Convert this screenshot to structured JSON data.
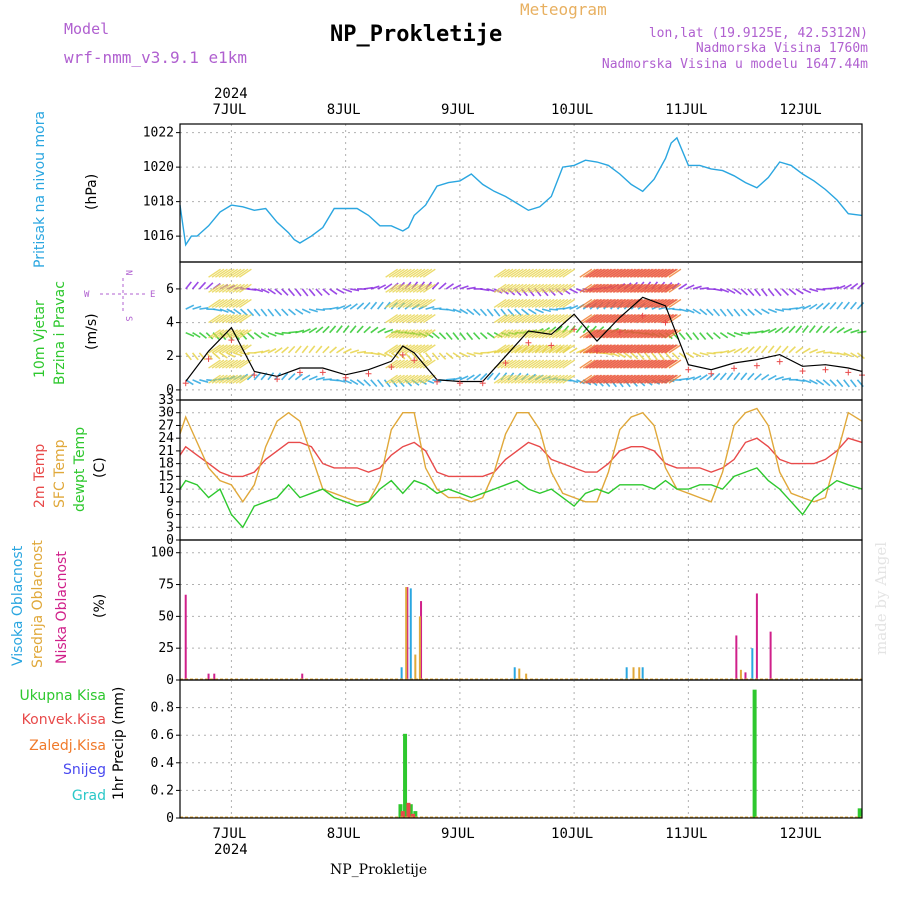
{
  "header": {
    "meteogram": "Meteogram",
    "model_label": "Model",
    "model_name": "wrf-nmm_v3.9.1  e1km",
    "station": "NP_Prokletije",
    "lonlat": "lon,lat (19.9125E, 42.5312N)",
    "elevation": "Nadmorska Visina 1760m",
    "model_elevation": "Nadmorska Visina u modelu 1647.44m",
    "watermark": "made by Angel",
    "footer": "NP_Prokletije"
  },
  "time_axis": {
    "year": "2024",
    "days": [
      "7JUL",
      "8JUL",
      "9JUL",
      "10JUL",
      "11JUL",
      "12JUL"
    ],
    "range_days": [
      6.55,
      12.52
    ]
  },
  "colors": {
    "pressure": "#2aa6e0",
    "wind_label": "#2ec82e",
    "temp2m": "#e84a4a",
    "sfc_temp": "#e0a83a",
    "dewpt": "#2ec82e",
    "high_cloud": "#2aa6e0",
    "mid_cloud": "#e0a83a",
    "low_cloud": "#d0208a",
    "total_precip": "#2ec82e",
    "conv_precip": "#e84a4a",
    "frozen_precip": "#f07a2a",
    "snow": "#4a4af0",
    "hail": "#2ac8c8",
    "compass": "#b060d0"
  },
  "chart_data": [
    {
      "type": "line",
      "ylabel": "Pritisak na nivou mora",
      "unit": "(hPa)",
      "ylim": [
        1014.5,
        1022.5
      ],
      "yticks": [
        1016,
        1018,
        1020,
        1022
      ],
      "grid": true,
      "series": [
        {
          "x": [
            6.55,
            6.6,
            6.65,
            6.7,
            6.8,
            6.9,
            7.0,
            7.1,
            7.2,
            7.3,
            7.4,
            7.5,
            7.55,
            7.6,
            7.7,
            7.8,
            7.9,
            8.0,
            8.1,
            8.2,
            8.3,
            8.4,
            8.5,
            8.55,
            8.6,
            8.7,
            8.8,
            8.9,
            9.0,
            9.1,
            9.2,
            9.3,
            9.4,
            9.5,
            9.6,
            9.7,
            9.8,
            9.9,
            10.0,
            10.1,
            10.2,
            10.3,
            10.4,
            10.5,
            10.6,
            10.7,
            10.8,
            10.85,
            10.9,
            11.0,
            11.1,
            11.2,
            11.3,
            11.4,
            11.5,
            11.6,
            11.7,
            11.8,
            11.9,
            12.0,
            12.1,
            12.2,
            12.3,
            12.4,
            12.52
          ],
          "values": [
            1017.8,
            1015.5,
            1016.0,
            1016.0,
            1016.6,
            1017.4,
            1017.8,
            1017.7,
            1017.5,
            1017.6,
            1016.8,
            1016.2,
            1015.8,
            1015.6,
            1016.0,
            1016.5,
            1017.6,
            1017.6,
            1017.6,
            1017.2,
            1016.6,
            1016.6,
            1016.3,
            1016.5,
            1017.2,
            1017.8,
            1018.9,
            1019.1,
            1019.2,
            1019.6,
            1019.0,
            1018.6,
            1018.3,
            1017.9,
            1017.5,
            1017.7,
            1018.3,
            1020.0,
            1020.1,
            1020.4,
            1020.3,
            1020.1,
            1019.6,
            1019.0,
            1018.6,
            1019.3,
            1020.5,
            1021.4,
            1021.7,
            1020.1,
            1020.1,
            1019.9,
            1019.8,
            1019.5,
            1019.1,
            1018.8,
            1019.4,
            1020.3,
            1020.1,
            1019.6,
            1019.2,
            1018.7,
            1018.1,
            1017.3,
            1017.2
          ]
        }
      ]
    },
    {
      "type": "line",
      "ylabel": "10m Vjetar Brzina i Pravac",
      "unit": "(m/s)",
      "ylim": [
        -0.6,
        7.6
      ],
      "yticks": [
        0,
        2,
        4,
        6
      ],
      "compass": {
        "w": "W",
        "e": "E",
        "n": "N",
        "s": "S"
      },
      "series": [
        {
          "x": [
            6.6,
            6.8,
            7.0,
            7.2,
            7.4,
            7.6,
            7.8,
            8.0,
            8.2,
            8.4,
            8.5,
            8.6,
            8.8,
            9.0,
            9.2,
            9.4,
            9.6,
            9.8,
            10.0,
            10.2,
            10.4,
            10.6,
            10.8,
            11.0,
            11.2,
            11.4,
            11.6,
            11.8,
            12.0,
            12.2,
            12.4,
            12.52
          ],
          "values": [
            0.5,
            2.3,
            3.7,
            1.1,
            0.8,
            1.3,
            1.3,
            0.9,
            1.2,
            1.7,
            2.6,
            2.2,
            0.6,
            0.5,
            0.5,
            2.0,
            3.5,
            3.3,
            4.5,
            2.9,
            4.3,
            5.5,
            5.0,
            1.5,
            1.2,
            1.6,
            1.8,
            2.1,
            1.4,
            1.5,
            1.3,
            1.1
          ]
        }
      ]
    },
    {
      "type": "line",
      "ylabel": "2m Temp / SFC Temp / dewpt Temp",
      "unit": "(C)",
      "ylim": [
        0,
        33
      ],
      "yticks": [
        0,
        3,
        6,
        9,
        12,
        15,
        18,
        21,
        24,
        27,
        30,
        33
      ],
      "series": [
        {
          "name": "2m Temp",
          "x": [
            6.55,
            6.6,
            6.7,
            6.8,
            6.9,
            7.0,
            7.1,
            7.2,
            7.3,
            7.4,
            7.5,
            7.6,
            7.7,
            7.8,
            7.9,
            8.0,
            8.1,
            8.2,
            8.3,
            8.4,
            8.5,
            8.6,
            8.7,
            8.8,
            8.9,
            9.0,
            9.1,
            9.2,
            9.3,
            9.4,
            9.5,
            9.6,
            9.7,
            9.8,
            9.9,
            10.0,
            10.1,
            10.2,
            10.3,
            10.4,
            10.5,
            10.6,
            10.7,
            10.8,
            10.9,
            11.0,
            11.1,
            11.2,
            11.3,
            11.4,
            11.5,
            11.6,
            11.7,
            11.8,
            11.9,
            12.0,
            12.1,
            12.2,
            12.3,
            12.4,
            12.52
          ],
          "values": [
            20,
            22,
            20,
            18,
            16,
            15,
            15,
            16,
            19,
            21,
            23,
            23,
            22,
            18,
            17,
            17,
            17,
            16,
            17,
            20,
            22,
            23,
            21,
            16,
            15,
            15,
            15,
            15,
            16,
            19,
            21,
            23,
            22,
            19,
            18,
            17,
            16,
            16,
            18,
            21,
            22,
            22,
            21,
            18,
            17,
            17,
            17,
            16,
            17,
            19,
            23,
            24,
            22,
            19,
            18,
            18,
            18,
            19,
            21,
            24,
            23
          ]
        },
        {
          "name": "SFC Temp",
          "x": [
            6.55,
            6.6,
            6.7,
            6.8,
            6.9,
            7.0,
            7.1,
            7.2,
            7.3,
            7.4,
            7.5,
            7.6,
            7.7,
            7.8,
            7.9,
            8.0,
            8.1,
            8.2,
            8.3,
            8.4,
            8.5,
            8.6,
            8.7,
            8.8,
            8.9,
            9.0,
            9.1,
            9.2,
            9.3,
            9.4,
            9.5,
            9.6,
            9.7,
            9.8,
            9.9,
            10.0,
            10.1,
            10.2,
            10.3,
            10.4,
            10.5,
            10.6,
            10.7,
            10.8,
            10.9,
            11.0,
            11.1,
            11.2,
            11.3,
            11.4,
            11.5,
            11.6,
            11.7,
            11.8,
            11.9,
            12.0,
            12.1,
            12.2,
            12.3,
            12.4,
            12.52
          ],
          "values": [
            25,
            29,
            23,
            17,
            14,
            13,
            9,
            13,
            22,
            28,
            30,
            28,
            20,
            12,
            11,
            10,
            9,
            9,
            14,
            26,
            30,
            30,
            17,
            12,
            10,
            10,
            9,
            10,
            16,
            25,
            30,
            30,
            26,
            16,
            11,
            10,
            9,
            9,
            16,
            26,
            29,
            30,
            27,
            17,
            12,
            11,
            10,
            9,
            16,
            27,
            30,
            31,
            27,
            16,
            11,
            10,
            9,
            10,
            20,
            30,
            28
          ]
        },
        {
          "name": "dewpt Temp",
          "x": [
            6.55,
            6.6,
            6.7,
            6.8,
            6.9,
            7.0,
            7.1,
            7.2,
            7.3,
            7.4,
            7.5,
            7.6,
            7.7,
            7.8,
            7.9,
            8.0,
            8.1,
            8.2,
            8.3,
            8.4,
            8.5,
            8.6,
            8.7,
            8.8,
            8.9,
            9.0,
            9.1,
            9.2,
            9.3,
            9.4,
            9.5,
            9.6,
            9.7,
            9.8,
            9.9,
            10.0,
            10.1,
            10.2,
            10.3,
            10.4,
            10.5,
            10.6,
            10.7,
            10.8,
            10.9,
            11.0,
            11.1,
            11.2,
            11.3,
            11.4,
            11.5,
            11.6,
            11.7,
            11.8,
            11.9,
            12.0,
            12.1,
            12.2,
            12.3,
            12.4,
            12.52
          ],
          "values": [
            12,
            14,
            13,
            10,
            12,
            6,
            3,
            8,
            9,
            10,
            13,
            10,
            11,
            12,
            10,
            9,
            8,
            9,
            12,
            14,
            11,
            14,
            13,
            11,
            12,
            11,
            10,
            11,
            12,
            13,
            14,
            12,
            11,
            12,
            10,
            8,
            11,
            12,
            11,
            13,
            13,
            13,
            12,
            14,
            12,
            12,
            13,
            13,
            12,
            15,
            16,
            17,
            14,
            12,
            9,
            6,
            10,
            12,
            14,
            13,
            12
          ]
        }
      ]
    },
    {
      "type": "bar",
      "ylabel": "Visoka Oblacnost / Srednja Oblacnost / Niska Oblacnost",
      "unit": "(%)",
      "ylim": [
        0,
        110
      ],
      "yticks": [
        0,
        25,
        50,
        75,
        100
      ],
      "series": [
        {
          "name": "Niska Oblacnost",
          "x": [
            6.6,
            6.8,
            6.85,
            7.62,
            8.54,
            8.66,
            11.42,
            11.5,
            11.6,
            11.72
          ],
          "values": [
            67,
            5,
            5,
            5,
            73,
            62,
            35,
            6,
            68,
            38
          ]
        },
        {
          "name": "Srednja Oblacnost",
          "x": [
            8.53,
            8.61,
            8.65,
            9.52,
            9.58,
            10.52,
            10.57,
            11.46
          ],
          "values": [
            73,
            20,
            50,
            9,
            5,
            10,
            10,
            8
          ]
        },
        {
          "name": "Visoka Oblacnost",
          "x": [
            8.49,
            8.57,
            9.48,
            10.46,
            10.6,
            11.56
          ],
          "values": [
            10,
            72,
            10,
            10,
            10,
            25
          ]
        }
      ]
    },
    {
      "type": "bar",
      "ylabel": "1hr Precip",
      "unit": "(mm)",
      "ylim": [
        0,
        1.0
      ],
      "yticks": [
        0,
        0.2,
        0.4,
        0.6,
        0.8
      ],
      "legend": [
        "Ukupna Kisa",
        "Konvek.Kisa",
        "Zaledj.Kisa",
        "Snijeg",
        "Grad"
      ],
      "series": [
        {
          "name": "Ukupna Kisa",
          "x": [
            8.48,
            8.52,
            8.57,
            8.61,
            11.58,
            12.5
          ],
          "values": [
            0.1,
            0.61,
            0.1,
            0.05,
            0.93,
            0.07
          ]
        },
        {
          "name": "Konvek.Kisa",
          "x": [
            8.5,
            8.55,
            8.59
          ],
          "values": [
            0.05,
            0.11,
            0.03
          ]
        }
      ]
    }
  ]
}
